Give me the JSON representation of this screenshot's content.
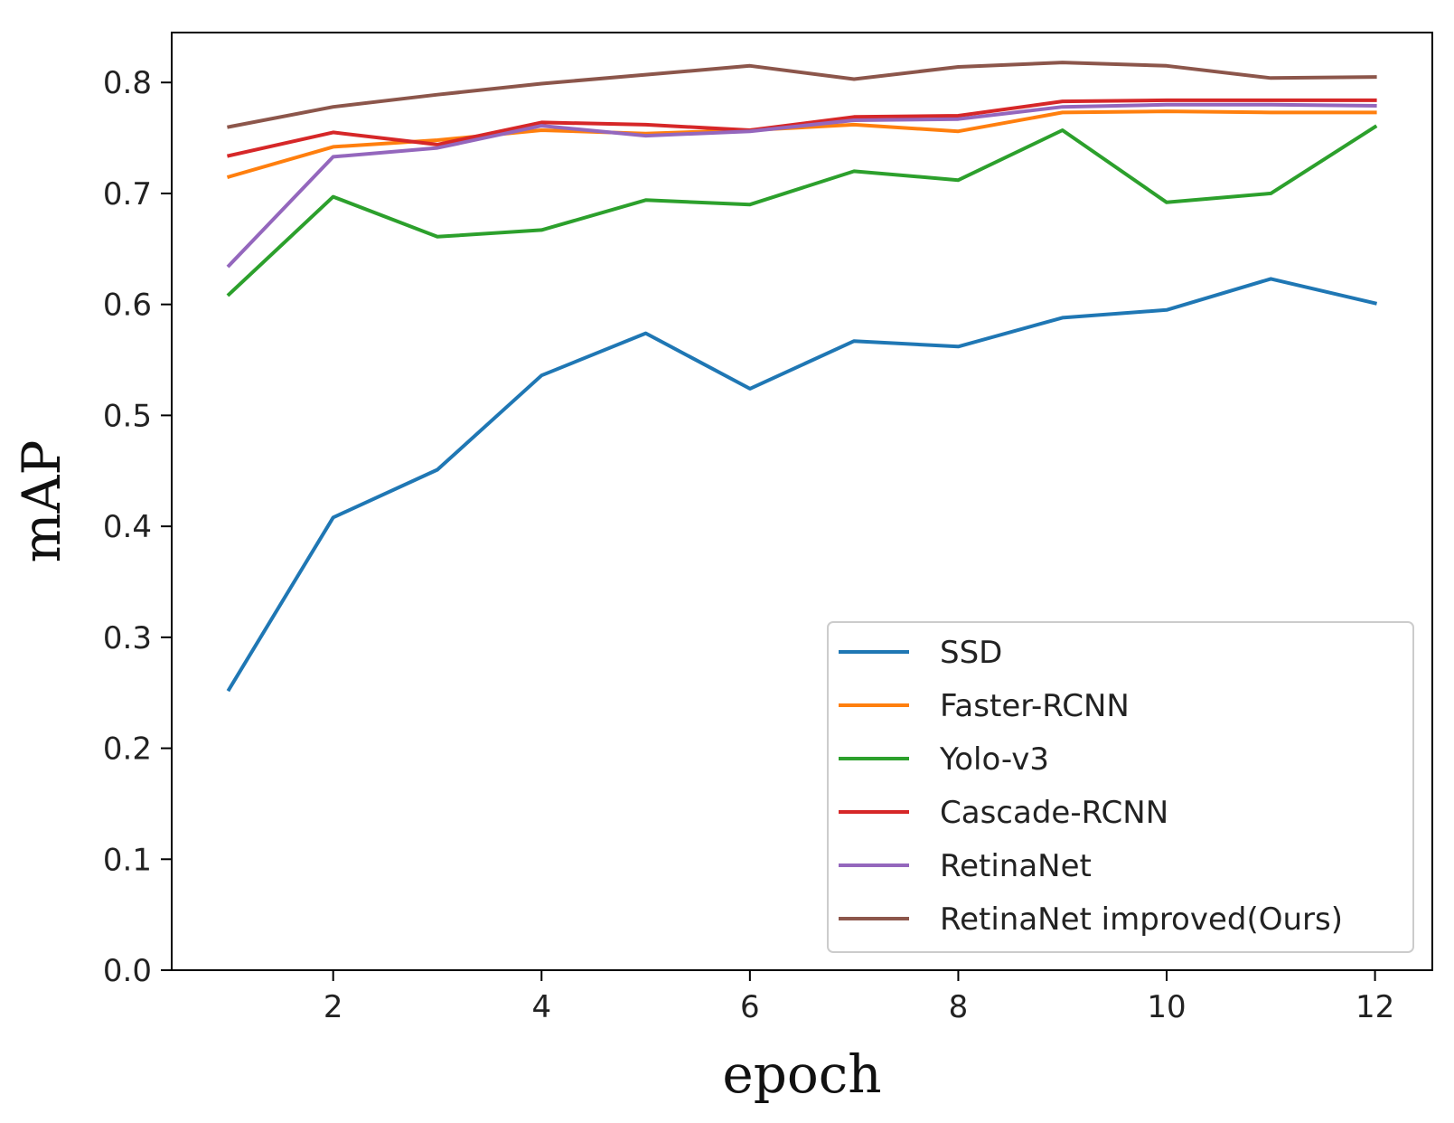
{
  "chart_data": {
    "type": "line",
    "title": "",
    "xlabel": "epoch",
    "ylabel": "mAP",
    "xlim": [
      0.45,
      12.55
    ],
    "ylim": [
      0.0,
      0.845
    ],
    "x": [
      1,
      2,
      3,
      4,
      5,
      6,
      7,
      8,
      9,
      10,
      11,
      12
    ],
    "xticks": [
      2,
      4,
      6,
      8,
      10,
      12
    ],
    "xtick_labels": [
      "2",
      "4",
      "6",
      "8",
      "10",
      "12"
    ],
    "yticks": [
      0.0,
      0.1,
      0.2,
      0.3,
      0.4,
      0.5,
      0.6,
      0.7,
      0.8
    ],
    "ytick_labels": [
      "0.0",
      "0.1",
      "0.2",
      "0.3",
      "0.4",
      "0.5",
      "0.6",
      "0.7",
      "0.8"
    ],
    "grid": false,
    "legend_position": "lower-right",
    "series": [
      {
        "name": "SSD",
        "color": "#1f77b4",
        "values": [
          0.253,
          0.408,
          0.451,
          0.536,
          0.574,
          0.524,
          0.567,
          0.562,
          0.588,
          0.595,
          0.623,
          0.601
        ]
      },
      {
        "name": "Faster-RCNN",
        "color": "#ff7f0e",
        "values": [
          0.715,
          0.742,
          0.748,
          0.757,
          0.754,
          0.757,
          0.762,
          0.756,
          0.773,
          0.774,
          0.773,
          0.773
        ]
      },
      {
        "name": "Yolo-v3",
        "color": "#2ca02c",
        "values": [
          0.609,
          0.697,
          0.661,
          0.667,
          0.694,
          0.69,
          0.72,
          0.712,
          0.757,
          0.692,
          0.7,
          0.76
        ]
      },
      {
        "name": "Cascade-RCNN",
        "color": "#d62728",
        "values": [
          0.734,
          0.755,
          0.744,
          0.764,
          0.762,
          0.757,
          0.769,
          0.77,
          0.783,
          0.784,
          0.784,
          0.784
        ]
      },
      {
        "name": "RetinaNet",
        "color": "#9467bd",
        "values": [
          0.635,
          0.733,
          0.741,
          0.761,
          0.752,
          0.756,
          0.766,
          0.767,
          0.778,
          0.78,
          0.78,
          0.779
        ]
      },
      {
        "name": "RetinaNet improved(Ours)",
        "color": "#8c564b",
        "values": [
          0.76,
          0.778,
          0.789,
          0.799,
          0.807,
          0.815,
          0.803,
          0.814,
          0.818,
          0.815,
          0.804,
          0.805
        ]
      }
    ]
  }
}
